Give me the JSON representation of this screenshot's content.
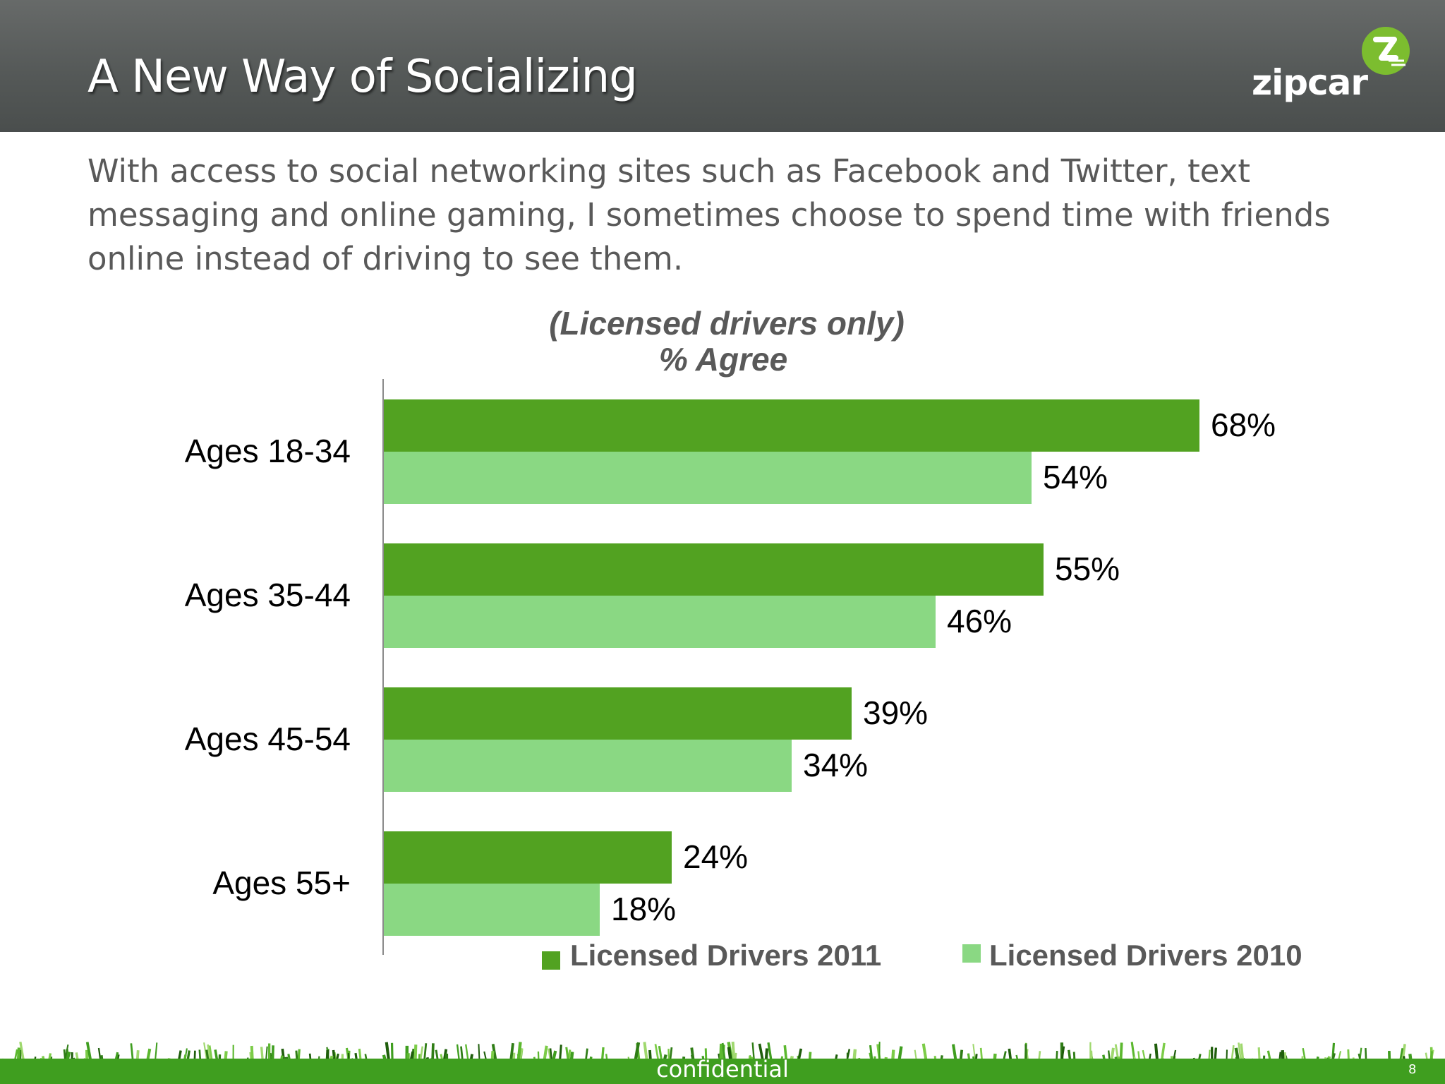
{
  "slide": {
    "title": "A New Way of Socializing",
    "subtitle": "With access to social networking sites such as Facebook and Twitter, text messaging and online gaming, I sometimes choose to spend time with friends online instead of driving to see them.",
    "logo_text": "zipcar",
    "footer": "confidential",
    "page_number": "8"
  },
  "colors": {
    "series_2011": "#52a221",
    "series_2010": "#8ad883",
    "header": "#555958",
    "grass": "#3f9e1f"
  },
  "chart_data": {
    "type": "bar",
    "orientation": "horizontal",
    "title": "(Licensed drivers only)",
    "subtitle": "% Agree",
    "categories": [
      "Ages 18-34",
      "Ages 35-44",
      "Ages 45-54",
      "Ages 55+"
    ],
    "series": [
      {
        "name": "Licensed Drivers 2011",
        "values": [
          68,
          55,
          39,
          24
        ],
        "labels": [
          "68%",
          "55%",
          "39%",
          "24%"
        ]
      },
      {
        "name": "Licensed Drivers 2010",
        "values": [
          54,
          46,
          34,
          18
        ],
        "labels": [
          "54%",
          "46%",
          "34%",
          "18%"
        ]
      }
    ],
    "value_unit": "%",
    "xlim": [
      0,
      80
    ],
    "grid": false,
    "legend_position": "bottom"
  }
}
